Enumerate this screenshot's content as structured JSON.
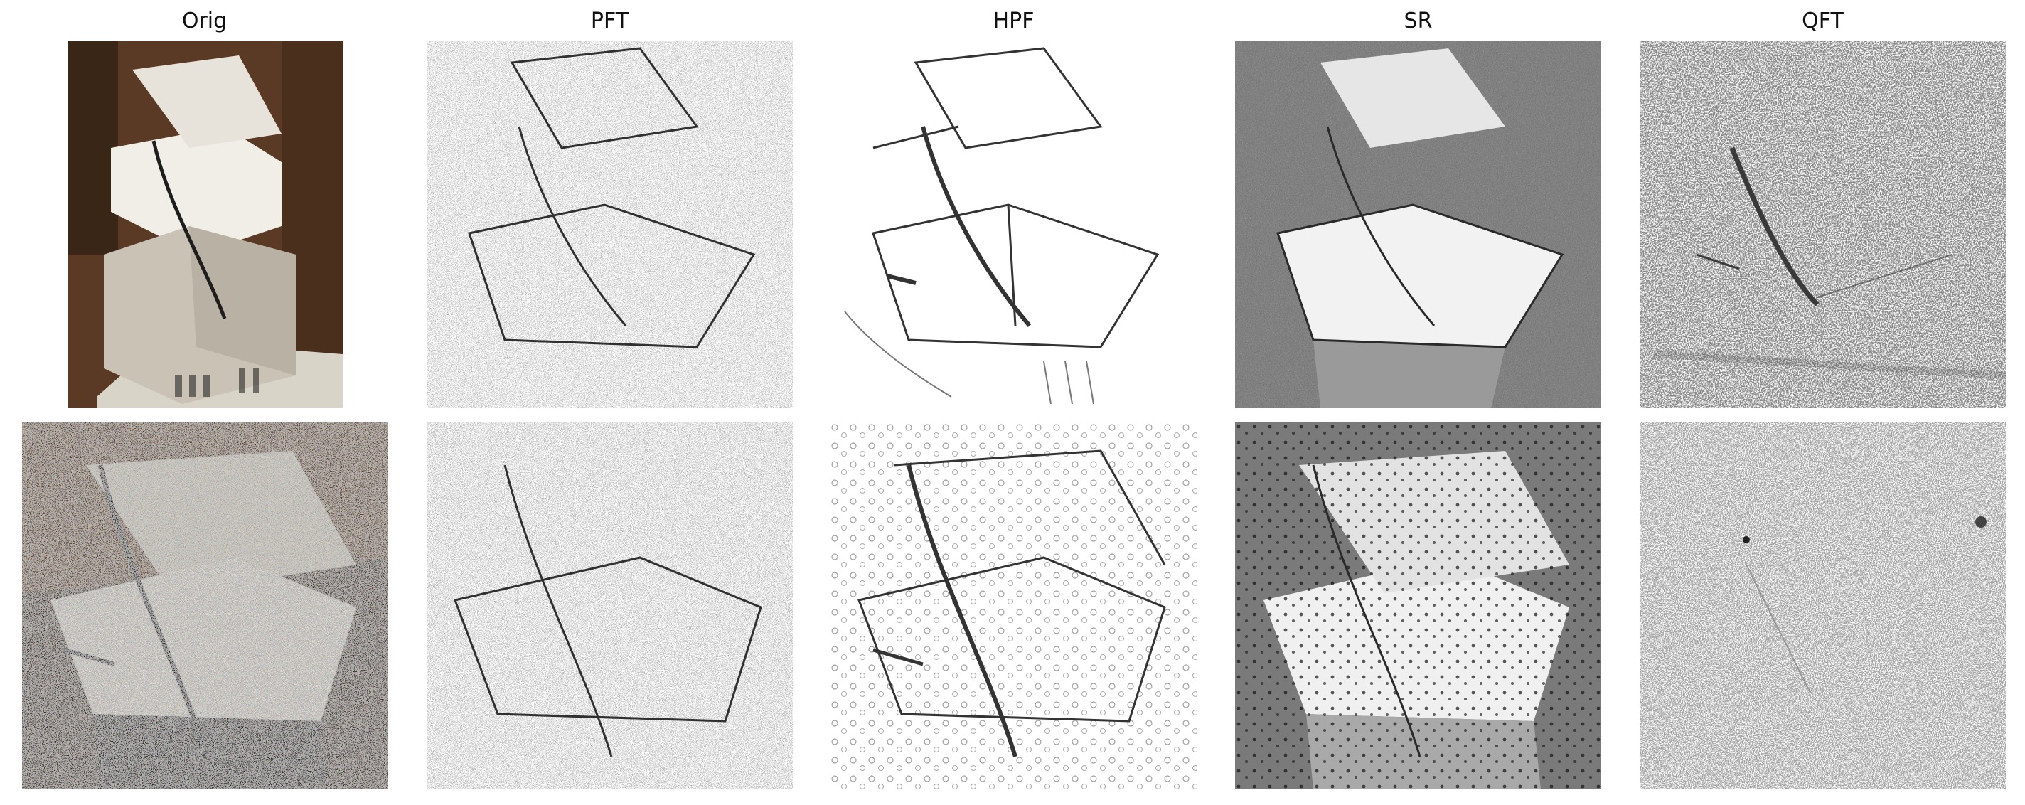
{
  "figure": {
    "columns": [
      {
        "key": "orig",
        "title": "Orig"
      },
      {
        "key": "pft",
        "title": "PFT"
      },
      {
        "key": "hpf",
        "title": "HPF"
      },
      {
        "key": "sr",
        "title": "SR"
      },
      {
        "key": "qft",
        "title": "QFT"
      }
    ],
    "rows": [
      {
        "key": "clean"
      },
      {
        "key": "noisy"
      }
    ]
  }
}
